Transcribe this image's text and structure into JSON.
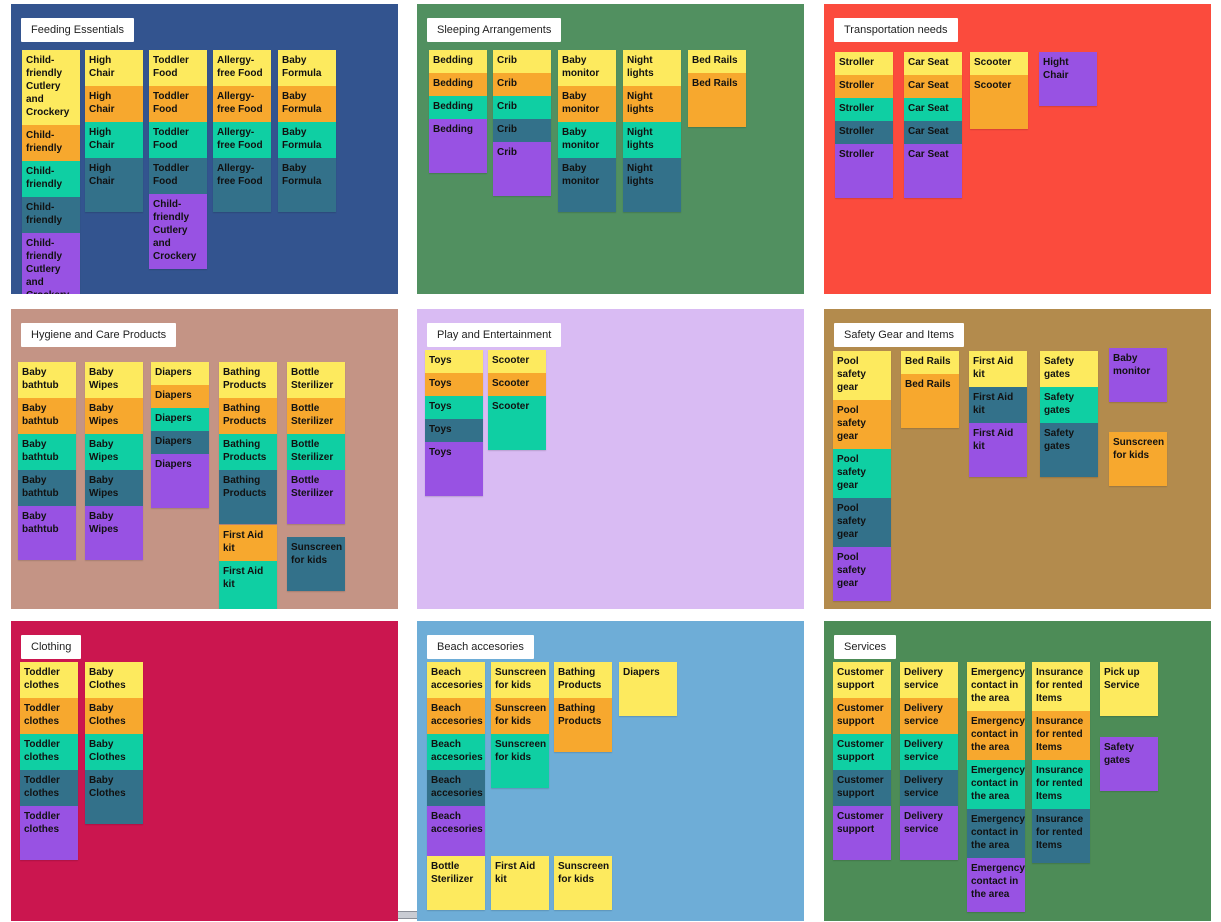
{
  "boards": [
    {
      "title": "Feeding  Essentials",
      "color": "#33548f",
      "columns": [
        [
          {
            "text": "Child-friendly Cutlery and Crockery",
            "color": "#fdea5e"
          },
          {
            "text": "Child-friendly",
            "color": "#f7a82e"
          },
          {
            "text": "Child-friendly",
            "color": "#0fcfa3"
          },
          {
            "text": "Child-friendly",
            "color": "#33718a"
          },
          {
            "text": "Child-friendly Cutlery and Crockery",
            "color": "#9852e3"
          }
        ],
        [
          {
            "text": "High Chair",
            "color": "#fdea5e"
          },
          {
            "text": "High Chair",
            "color": "#f7a82e"
          },
          {
            "text": "High Chair",
            "color": "#0fcfa3"
          },
          {
            "text": "High Chair",
            "color": "#33718a"
          }
        ],
        [
          {
            "text": "Toddler Food",
            "color": "#fdea5e"
          },
          {
            "text": "Toddler Food",
            "color": "#f7a82e"
          },
          {
            "text": "Toddler Food",
            "color": "#0fcfa3"
          },
          {
            "text": "Toddler Food",
            "color": "#33718a"
          },
          {
            "text": "Child-friendly Cutlery and Crockery",
            "color": "#9852e3"
          }
        ],
        [
          {
            "text": "Allergy-free Food",
            "color": "#fdea5e"
          },
          {
            "text": "Allergy-free Food",
            "color": "#f7a82e"
          },
          {
            "text": "Allergy-free Food",
            "color": "#0fcfa3"
          },
          {
            "text": "Allergy-free Food",
            "color": "#33718a"
          }
        ],
        [
          {
            "text": "Baby Formula",
            "color": "#fdea5e"
          },
          {
            "text": "Baby Formula",
            "color": "#f7a82e"
          },
          {
            "text": "Baby Formula",
            "color": "#0fcfa3"
          },
          {
            "text": "Baby Formula",
            "color": "#33718a"
          }
        ]
      ]
    },
    {
      "title": "Sleeping  Arrangements",
      "color": "#519060",
      "columns": [
        [
          {
            "text": "Bedding",
            "color": "#fdea5e"
          },
          {
            "text": "Bedding",
            "color": "#f7a82e"
          },
          {
            "text": "Bedding",
            "color": "#0fcfa3"
          },
          {
            "text": "Bedding",
            "color": "#9852e3"
          }
        ],
        [
          {
            "text": "Crib",
            "color": "#fdea5e"
          },
          {
            "text": "Crib",
            "color": "#f7a82e"
          },
          {
            "text": "Crib",
            "color": "#0fcfa3"
          },
          {
            "text": "Crib",
            "color": "#33718a"
          },
          {
            "text": "Crib",
            "color": "#9852e3"
          }
        ],
        [
          {
            "text": "Baby monitor",
            "color": "#fdea5e"
          },
          {
            "text": "Baby monitor",
            "color": "#f7a82e"
          },
          {
            "text": "Baby monitor",
            "color": "#0fcfa3"
          },
          {
            "text": "Baby monitor",
            "color": "#33718a"
          }
        ],
        [
          {
            "text": "Night lights",
            "color": "#fdea5e"
          },
          {
            "text": "Night lights",
            "color": "#f7a82e"
          },
          {
            "text": "Night lights",
            "color": "#0fcfa3"
          },
          {
            "text": "Night lights",
            "color": "#33718a"
          }
        ],
        [
          {
            "text": "Bed Rails",
            "color": "#fdea5e"
          },
          {
            "text": "Bed Rails",
            "color": "#f7a82e"
          }
        ]
      ]
    },
    {
      "title": "Transportation needs",
      "color": "#fb4b3d",
      "columns": [
        [
          {
            "text": "Stroller",
            "color": "#fdea5e"
          },
          {
            "text": "Stroller",
            "color": "#f7a82e"
          },
          {
            "text": "Stroller",
            "color": "#0fcfa3"
          },
          {
            "text": "Stroller",
            "color": "#33718a"
          },
          {
            "text": "Stroller",
            "color": "#9852e3"
          }
        ],
        [
          {
            "text": "Car Seat",
            "color": "#fdea5e"
          },
          {
            "text": "Car Seat",
            "color": "#f7a82e"
          },
          {
            "text": "Car Seat",
            "color": "#0fcfa3"
          },
          {
            "text": "Car Seat",
            "color": "#33718a"
          },
          {
            "text": "Car Seat",
            "color": "#9852e3"
          }
        ],
        [
          {
            "text": "Scooter",
            "color": "#fdea5e"
          },
          {
            "text": "Scooter",
            "color": "#f7a82e"
          }
        ],
        [
          {
            "text": "Hight Chair",
            "color": "#9852e3"
          }
        ]
      ]
    },
    {
      "title": "Hygiene and Care Products",
      "color": "#c49485",
      "columns": [
        [
          {
            "text": "Baby bathtub",
            "color": "#fdea5e"
          },
          {
            "text": "Baby bathtub",
            "color": "#f7a82e"
          },
          {
            "text": "Baby bathtub",
            "color": "#0fcfa3"
          },
          {
            "text": "Baby bathtub",
            "color": "#33718a"
          },
          {
            "text": "Baby bathtub",
            "color": "#9852e3"
          }
        ],
        [
          {
            "text": "Baby Wipes",
            "color": "#fdea5e"
          },
          {
            "text": "Baby Wipes",
            "color": "#f7a82e"
          },
          {
            "text": "Baby Wipes",
            "color": "#0fcfa3"
          },
          {
            "text": "Baby Wipes",
            "color": "#33718a"
          },
          {
            "text": "Baby Wipes",
            "color": "#9852e3"
          }
        ],
        [
          {
            "text": "Diapers",
            "color": "#fdea5e"
          },
          {
            "text": "Diapers",
            "color": "#f7a82e"
          },
          {
            "text": "Diapers",
            "color": "#0fcfa3"
          },
          {
            "text": "Diapers",
            "color": "#33718a"
          },
          {
            "text": "Diapers",
            "color": "#9852e3"
          }
        ],
        [
          {
            "text": "Bathing Products",
            "color": "#fdea5e"
          },
          {
            "text": "Bathing Products",
            "color": "#f7a82e"
          },
          {
            "text": "Bathing Products",
            "color": "#0fcfa3"
          },
          {
            "text": "Bathing Products",
            "color": "#33718a"
          }
        ],
        [
          {
            "text": "Bottle Sterilizer",
            "color": "#fdea5e"
          },
          {
            "text": "Bottle Sterilizer",
            "color": "#f7a82e"
          },
          {
            "text": "Bottle Sterilizer",
            "color": "#0fcfa3"
          },
          {
            "text": "Bottle Sterilizer",
            "color": "#9852e3"
          }
        ],
        [
          {
            "text": "First Aid kit",
            "color": "#f7a82e"
          },
          {
            "text": "First Aid kit",
            "color": "#0fcfa3"
          }
        ],
        [
          {
            "text": "Sunscreen for kids",
            "color": "#33718a"
          }
        ]
      ]
    },
    {
      "title": "Play and Entertainment",
      "color": "#d9bbf3",
      "columns": [
        [
          {
            "text": "Toys",
            "color": "#fdea5e"
          },
          {
            "text": "Toys",
            "color": "#f7a82e"
          },
          {
            "text": "Toys",
            "color": "#0fcfa3"
          },
          {
            "text": "Toys",
            "color": "#33718a"
          },
          {
            "text": "Toys",
            "color": "#9852e3"
          }
        ],
        [
          {
            "text": "Scooter",
            "color": "#fdea5e"
          },
          {
            "text": "Scooter",
            "color": "#f7a82e"
          },
          {
            "text": "Scooter",
            "color": "#0fcfa3"
          }
        ]
      ]
    },
    {
      "title": "Safety Gear and Items",
      "color": "#b38b4d",
      "columns": [
        [
          {
            "text": "Pool safety gear",
            "color": "#fdea5e"
          },
          {
            "text": "Pool safety gear",
            "color": "#f7a82e"
          },
          {
            "text": "Pool safety gear",
            "color": "#0fcfa3"
          },
          {
            "text": "Pool safety gear",
            "color": "#33718a"
          },
          {
            "text": "Pool safety gear",
            "color": "#9852e3"
          }
        ],
        [
          {
            "text": "Bed Rails",
            "color": "#fdea5e"
          },
          {
            "text": "Bed Rails",
            "color": "#f7a82e"
          }
        ],
        [
          {
            "text": "First Aid kit",
            "color": "#fdea5e"
          },
          {
            "text": "First Aid kit",
            "color": "#33718a"
          },
          {
            "text": "First Aid kit",
            "color": "#9852e3"
          }
        ],
        [
          {
            "text": "Safety gates",
            "color": "#fdea5e"
          },
          {
            "text": "Safety gates",
            "color": "#0fcfa3"
          },
          {
            "text": "Safety gates",
            "color": "#33718a"
          }
        ],
        [
          {
            "text": "Baby monitor",
            "color": "#9852e3"
          }
        ],
        [
          {
            "text": "Sunscreen for kids",
            "color": "#f7a82e"
          }
        ]
      ]
    },
    {
      "title": "Clothing",
      "color": "#cb164f",
      "columns": [
        [
          {
            "text": "Toddler clothes",
            "color": "#fdea5e"
          },
          {
            "text": "Toddler clothes",
            "color": "#f7a82e"
          },
          {
            "text": "Toddler clothes",
            "color": "#0fcfa3"
          },
          {
            "text": "Toddler clothes",
            "color": "#33718a"
          },
          {
            "text": "Toddler clothes",
            "color": "#9852e3"
          }
        ],
        [
          {
            "text": "Baby Clothes",
            "color": "#fdea5e"
          },
          {
            "text": "Baby Clothes",
            "color": "#f7a82e"
          },
          {
            "text": "Baby Clothes",
            "color": "#0fcfa3"
          },
          {
            "text": "Baby Clothes",
            "color": "#33718a"
          }
        ]
      ]
    },
    {
      "title": "Beach accesories",
      "color": "#6eadd7",
      "columns": [
        [
          {
            "text": "Beach accesories",
            "color": "#fdea5e"
          },
          {
            "text": "Beach accesories",
            "color": "#f7a82e"
          },
          {
            "text": "Beach accesories",
            "color": "#0fcfa3"
          },
          {
            "text": "Beach accesories",
            "color": "#33718a"
          },
          {
            "text": "Beach accesories",
            "color": "#9852e3"
          }
        ],
        [
          {
            "text": "Sunscreen for kids",
            "color": "#fdea5e"
          },
          {
            "text": "Sunscreen for kids",
            "color": "#f7a82e"
          },
          {
            "text": "Sunscreen for kids",
            "color": "#0fcfa3"
          }
        ],
        [
          {
            "text": "Bathing Products",
            "color": "#fdea5e"
          },
          {
            "text": "Bathing Products",
            "color": "#f7a82e"
          }
        ],
        [
          {
            "text": "Diapers",
            "color": "#fdea5e"
          }
        ],
        [
          {
            "text": "Bottle Sterilizer",
            "color": "#fdea5e"
          }
        ],
        [
          {
            "text": "First Aid kit",
            "color": "#fdea5e"
          }
        ],
        [
          {
            "text": "Sunscreen for kids",
            "color": "#fdea5e"
          }
        ]
      ]
    },
    {
      "title": "Services",
      "color": "#4d8c57",
      "columns": [
        [
          {
            "text": "Customer support",
            "color": "#fdea5e"
          },
          {
            "text": "Customer support",
            "color": "#f7a82e"
          },
          {
            "text": "Customer support",
            "color": "#0fcfa3"
          },
          {
            "text": "Customer support",
            "color": "#33718a"
          },
          {
            "text": "Customer support",
            "color": "#9852e3"
          }
        ],
        [
          {
            "text": "Delivery service",
            "color": "#fdea5e"
          },
          {
            "text": "Delivery service",
            "color": "#f7a82e"
          },
          {
            "text": "Delivery service",
            "color": "#0fcfa3"
          },
          {
            "text": "Delivery service",
            "color": "#33718a"
          },
          {
            "text": "Delivery service",
            "color": "#9852e3"
          }
        ],
        [
          {
            "text": "Emergency contact in the area",
            "color": "#fdea5e"
          },
          {
            "text": "Emergency contact in the area",
            "color": "#f7a82e"
          },
          {
            "text": "Emergency contact in the area",
            "color": "#0fcfa3"
          },
          {
            "text": "Emergency contact in the area",
            "color": "#33718a"
          },
          {
            "text": "Emergency contact in the area",
            "color": "#9852e3"
          }
        ],
        [
          {
            "text": "Insurance for rented Items",
            "color": "#fdea5e"
          },
          {
            "text": "Insurance for rented Items",
            "color": "#f7a82e"
          },
          {
            "text": "Insurance for rented Items",
            "color": "#0fcfa3"
          },
          {
            "text": "Insurance for rented Items",
            "color": "#33718a"
          }
        ],
        [
          {
            "text": "Pick up Service",
            "color": "#fdea5e"
          }
        ],
        [
          {
            "text": "Safety gates",
            "color": "#9852e3"
          }
        ]
      ]
    }
  ]
}
